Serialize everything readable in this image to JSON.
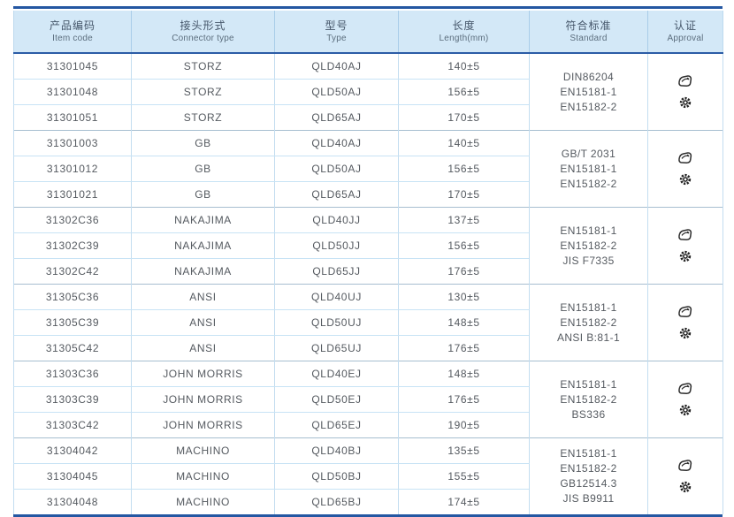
{
  "table": {
    "columns": [
      {
        "zh": "产品编码",
        "en": "Item code"
      },
      {
        "zh": "接头形式",
        "en": "Connector type"
      },
      {
        "zh": "型号",
        "en": "Type"
      },
      {
        "zh": "长度",
        "en": "Length(mm)"
      },
      {
        "zh": "符合标准",
        "en": "Standard"
      },
      {
        "zh": "认证",
        "en": "Approval"
      }
    ],
    "approval_icons": [
      "certification-stamp-icon",
      "gear-seal-icon"
    ],
    "groups": [
      {
        "rows": [
          {
            "item_code": "31301045",
            "connector_type": "STORZ",
            "type": "QLD40AJ",
            "length": "140±5"
          },
          {
            "item_code": "31301048",
            "connector_type": "STORZ",
            "type": "QLD50AJ",
            "length": "156±5"
          },
          {
            "item_code": "31301051",
            "connector_type": "STORZ",
            "type": "QLD65AJ",
            "length": "170±5"
          }
        ],
        "standards": [
          "DIN86204",
          "EN15181-1",
          "EN15182-2"
        ]
      },
      {
        "rows": [
          {
            "item_code": "31301003",
            "connector_type": "GB",
            "type": "QLD40AJ",
            "length": "140±5"
          },
          {
            "item_code": "31301012",
            "connector_type": "GB",
            "type": "QLD50AJ",
            "length": "156±5"
          },
          {
            "item_code": "31301021",
            "connector_type": "GB",
            "type": "QLD65AJ",
            "length": "170±5"
          }
        ],
        "standards": [
          "GB/T 2031",
          "EN15181-1",
          "EN15182-2"
        ]
      },
      {
        "rows": [
          {
            "item_code": "31302C36",
            "connector_type": "NAKAJIMA",
            "type": "QLD40JJ",
            "length": "137±5"
          },
          {
            "item_code": "31302C39",
            "connector_type": "NAKAJIMA",
            "type": "QLD50JJ",
            "length": "156±5"
          },
          {
            "item_code": "31302C42",
            "connector_type": "NAKAJIMA",
            "type": "QLD65JJ",
            "length": "176±5"
          }
        ],
        "standards": [
          "EN15181-1",
          "EN15182-2",
          "JIS F7335"
        ]
      },
      {
        "rows": [
          {
            "item_code": "31305C36",
            "connector_type": "ANSI",
            "type": "QLD40UJ",
            "length": "130±5"
          },
          {
            "item_code": "31305C39",
            "connector_type": "ANSI",
            "type": "QLD50UJ",
            "length": "148±5"
          },
          {
            "item_code": "31305C42",
            "connector_type": "ANSI",
            "type": "QLD65UJ",
            "length": "176±5"
          }
        ],
        "standards": [
          "EN15181-1",
          "EN15182-2",
          "ANSI B:81-1"
        ]
      },
      {
        "rows": [
          {
            "item_code": "31303C36",
            "connector_type": "JOHN MORRIS",
            "type": "QLD40EJ",
            "length": "148±5"
          },
          {
            "item_code": "31303C39",
            "connector_type": "JOHN MORRIS",
            "type": "QLD50EJ",
            "length": "176±5"
          },
          {
            "item_code": "31303C42",
            "connector_type": "JOHN MORRIS",
            "type": "QLD65EJ",
            "length": "190±5"
          }
        ],
        "standards": [
          "EN15181-1",
          "EN15182-2",
          "BS336"
        ]
      },
      {
        "rows": [
          {
            "item_code": "31304042",
            "connector_type": "MACHINO",
            "type": "QLD40BJ",
            "length": "135±5"
          },
          {
            "item_code": "31304045",
            "connector_type": "MACHINO",
            "type": "QLD50BJ",
            "length": "155±5"
          },
          {
            "item_code": "31304048",
            "connector_type": "MACHINO",
            "type": "QLD65BJ",
            "length": "174±5"
          }
        ],
        "standards": [
          "EN15181-1",
          "EN15182-2",
          "GB12514.3",
          "JIS B9911"
        ]
      }
    ],
    "colors": {
      "accent_border": "#2457a2",
      "header_bg": "#d3e8f7",
      "grid_line": "#c3ddf0",
      "group_line": "#a7bed0",
      "body_text": "#555a60",
      "icon": "#2e2e2e"
    }
  }
}
